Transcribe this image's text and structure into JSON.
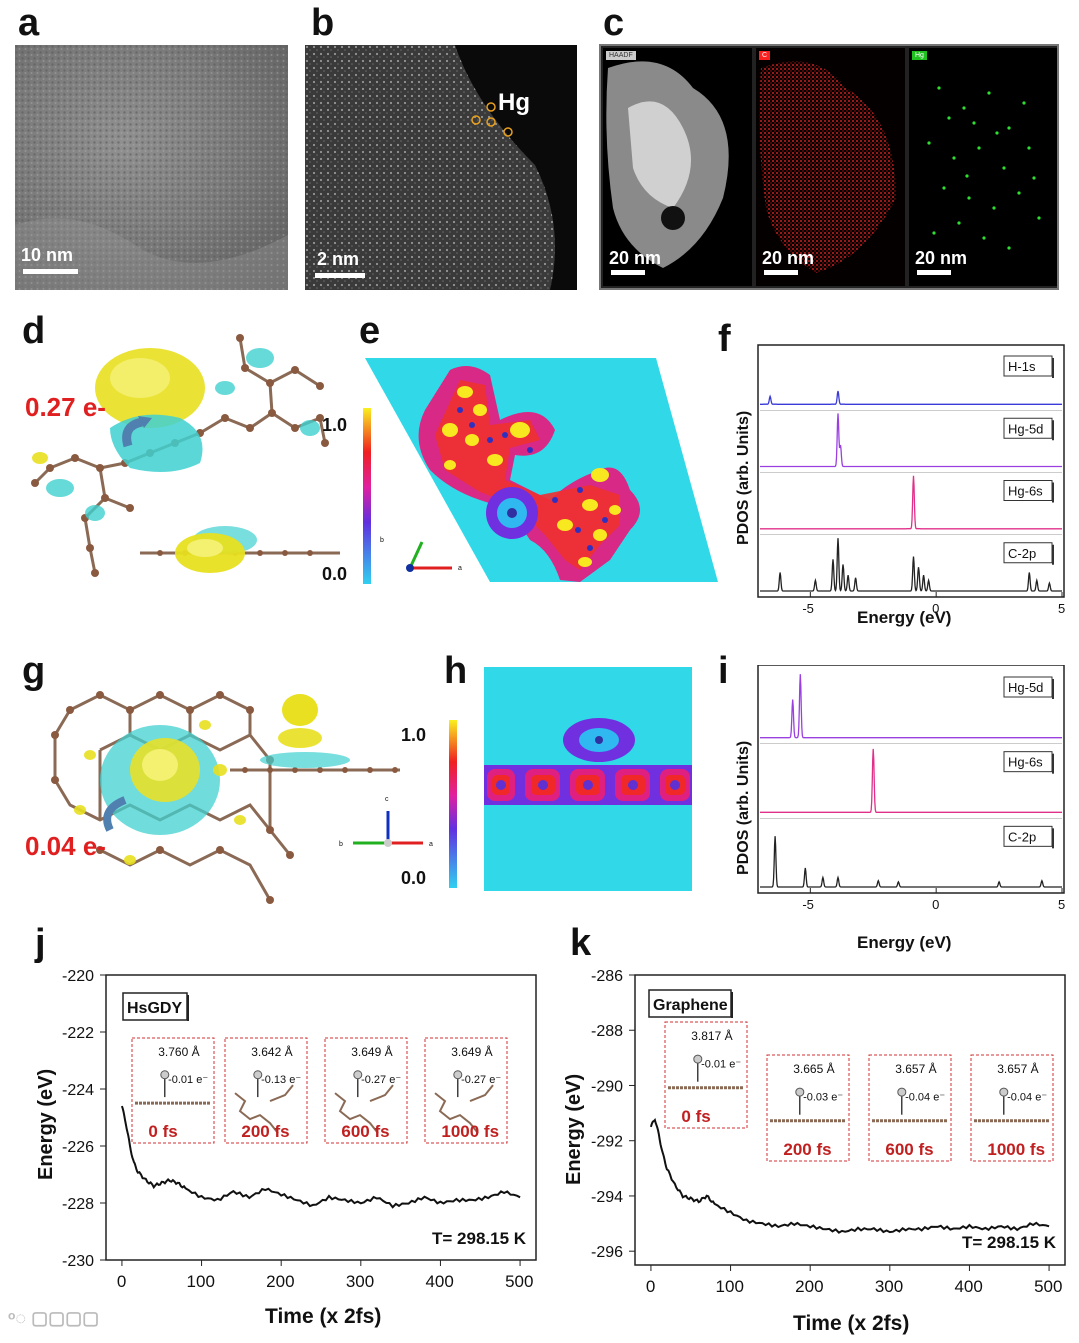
{
  "panels": {
    "a": {
      "label": "a",
      "scale": "10 nm"
    },
    "b": {
      "label": "b",
      "scale": "2 nm",
      "element": "Hg"
    },
    "c": {
      "label": "c",
      "tiles": [
        {
          "tag": "HAADF",
          "scale": "20 nm",
          "tag_color": "#cccccc"
        },
        {
          "tag": "C",
          "scale": "20 nm",
          "tag_color": "#ff2020"
        },
        {
          "tag": "Hg",
          "scale": "20 nm",
          "tag_color": "#20c020"
        }
      ]
    },
    "d": {
      "label": "d",
      "charge": "0.27 e-"
    },
    "e": {
      "label": "e",
      "cbar_max": "1.0",
      "cbar_min": "0.0",
      "axis_b": "b",
      "axis_a": "a"
    },
    "f": {
      "label": "f",
      "ylabel": "PDOS (arb. Units)",
      "xlabel": "Energy (eV)",
      "xticks": [
        "-5",
        "0",
        "5"
      ],
      "legend": [
        "H-1s",
        "Hg-5d",
        "Hg-6s",
        "C-2p"
      ]
    },
    "g": {
      "label": "g",
      "charge": "0.04 e-"
    },
    "h": {
      "label": "h",
      "cbar_max": "1.0",
      "cbar_min": "0.0",
      "axis_c": "c",
      "axis_b": "b",
      "axis_a": "a"
    },
    "i": {
      "label": "i",
      "ylabel": "PDOS (arb. Units)",
      "xlabel": "Energy (eV)",
      "xticks": [
        "-5",
        "0",
        "5"
      ],
      "legend": [
        "Hg-5d",
        "Hg-6s",
        "C-2p"
      ]
    },
    "j": {
      "label": "j",
      "title": "HsGDY",
      "temp": "T= 298.15 K",
      "snapshots": [
        {
          "dist": "3.760 Å",
          "charge": "-0.01 e⁻",
          "time": "0 fs"
        },
        {
          "dist": "3.642 Å",
          "charge": "-0.13 e⁻",
          "time": "200 fs"
        },
        {
          "dist": "3.649 Å",
          "charge": "-0.27 e⁻",
          "time": "600 fs"
        },
        {
          "dist": "3.649 Å",
          "charge": "-0.27 e⁻",
          "time": "1000 fs"
        }
      ]
    },
    "k": {
      "label": "k",
      "title": "Graphene",
      "temp": "T= 298.15 K",
      "snapshots": [
        {
          "dist": "3.817 Å",
          "charge": "-0.01 e⁻",
          "time": "0 fs"
        },
        {
          "dist": "3.665 Å",
          "charge": "-0.03 e⁻",
          "time": "200 fs"
        },
        {
          "dist": "3.657 Å",
          "charge": "-0.04 e⁻",
          "time": "600 fs"
        },
        {
          "dist": "3.657 Å",
          "charge": "-0.04 e⁻",
          "time": "1000 fs"
        }
      ]
    }
  },
  "chart_data": [
    {
      "type": "line",
      "panel": "f",
      "xlabel": "Energy (eV)",
      "ylabel": "PDOS (arb. Units)",
      "xlim": [
        -7,
        5
      ],
      "series": [
        {
          "name": "H-1s",
          "color": "#3a3ad8",
          "peaks": [
            [
              -6.6,
              0.15
            ],
            [
              -3.9,
              0.25
            ]
          ]
        },
        {
          "name": "Hg-5d",
          "color": "#9a40e0",
          "peaks": [
            [
              -3.9,
              1.0
            ],
            [
              -3.8,
              0.4
            ]
          ]
        },
        {
          "name": "Hg-6s",
          "color": "#e0308a",
          "peaks": [
            [
              -0.9,
              1.0
            ]
          ]
        },
        {
          "name": "C-2p",
          "color": "#222222",
          "peaks": [
            [
              -6.2,
              0.35
            ],
            [
              -4.8,
              0.2
            ],
            [
              -4.1,
              0.6
            ],
            [
              -3.9,
              1.0
            ],
            [
              -3.7,
              0.5
            ],
            [
              -3.5,
              0.3
            ],
            [
              -3.2,
              0.25
            ],
            [
              -0.9,
              0.65
            ],
            [
              -0.7,
              0.45
            ],
            [
              -0.5,
              0.3
            ],
            [
              -0.3,
              0.2
            ],
            [
              3.7,
              0.35
            ],
            [
              4.0,
              0.2
            ],
            [
              4.5,
              0.15
            ]
          ]
        }
      ]
    },
    {
      "type": "line",
      "panel": "i",
      "xlabel": "Energy (eV)",
      "ylabel": "PDOS (arb. Units)",
      "xlim": [
        -7,
        5
      ],
      "series": [
        {
          "name": "Hg-5d",
          "color": "#9a40e0",
          "peaks": [
            [
              -5.7,
              0.6
            ],
            [
              -5.4,
              1.0
            ]
          ]
        },
        {
          "name": "Hg-6s",
          "color": "#e0308a",
          "peaks": [
            [
              -2.5,
              1.0
            ]
          ]
        },
        {
          "name": "C-2p",
          "color": "#222222",
          "peaks": [
            [
              -6.4,
              0.8
            ],
            [
              -5.2,
              0.3
            ],
            [
              -4.5,
              0.15
            ],
            [
              -3.9,
              0.15
            ],
            [
              -2.3,
              0.1
            ],
            [
              -1.5,
              0.08
            ],
            [
              2.5,
              0.08
            ],
            [
              4.2,
              0.1
            ]
          ]
        }
      ]
    },
    {
      "type": "line",
      "panel": "j",
      "xlabel": "Time (x 2fs)",
      "ylabel": "Energy (eV)",
      "xlim": [
        -20,
        520
      ],
      "ylim": [
        -230,
        -220
      ],
      "xticks": [
        0,
        100,
        200,
        300,
        400,
        500
      ],
      "yticks": [
        -220,
        -222,
        -224,
        -226,
        -228,
        -230
      ],
      "x": [
        0,
        5,
        10,
        15,
        20,
        30,
        40,
        50,
        60,
        70,
        80,
        100,
        120,
        140,
        160,
        180,
        200,
        220,
        240,
        260,
        280,
        300,
        320,
        340,
        360,
        380,
        400,
        420,
        440,
        460,
        480,
        500
      ],
      "values": [
        -224.6,
        -225.2,
        -226.0,
        -226.6,
        -226.9,
        -227.2,
        -227.4,
        -227.3,
        -227.2,
        -227.3,
        -227.5,
        -227.8,
        -227.9,
        -227.6,
        -227.8,
        -227.5,
        -227.7,
        -227.9,
        -228.1,
        -227.8,
        -227.9,
        -228.0,
        -227.8,
        -228.1,
        -228.0,
        -227.8,
        -228.0,
        -227.9,
        -227.9,
        -227.8,
        -227.6,
        -227.8
      ]
    },
    {
      "type": "line",
      "panel": "k",
      "xlabel": "Time (x 2fs)",
      "ylabel": "Energy (eV)",
      "xlim": [
        -20,
        520
      ],
      "ylim": [
        -296.5,
        -286
      ],
      "xticks": [
        0,
        100,
        200,
        300,
        400,
        500
      ],
      "yticks": [
        -286,
        -288,
        -290,
        -292,
        -294,
        -296
      ],
      "x": [
        0,
        5,
        10,
        15,
        20,
        30,
        40,
        50,
        60,
        70,
        80,
        100,
        120,
        140,
        160,
        180,
        200,
        220,
        240,
        260,
        280,
        300,
        320,
        340,
        360,
        380,
        400,
        420,
        440,
        460,
        480,
        500
      ],
      "values": [
        -291.5,
        -291.2,
        -291.8,
        -292.5,
        -293.0,
        -293.6,
        -294.0,
        -294.1,
        -294.2,
        -294.0,
        -294.3,
        -294.6,
        -294.9,
        -295.0,
        -295.1,
        -295.0,
        -295.1,
        -295.2,
        -295.3,
        -295.2,
        -295.2,
        -295.3,
        -295.2,
        -295.2,
        -295.1,
        -295.2,
        -295.1,
        -295.2,
        -295.1,
        -295.2,
        -295.0,
        -295.1
      ]
    }
  ]
}
